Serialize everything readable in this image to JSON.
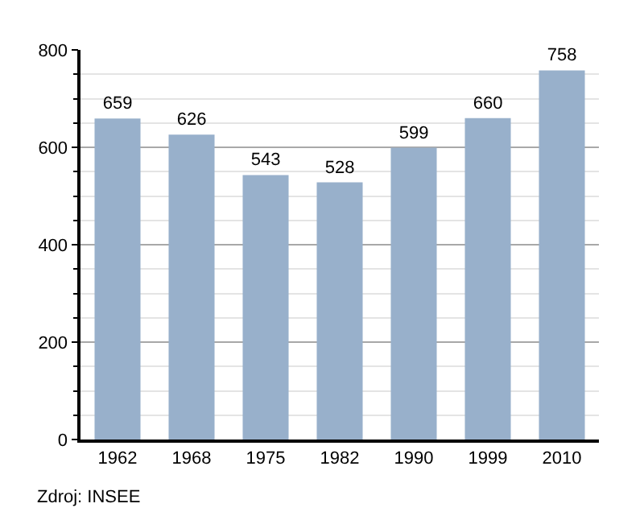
{
  "chart_data": {
    "type": "bar",
    "categories": [
      "1962",
      "1968",
      "1975",
      "1982",
      "1990",
      "1999",
      "2010"
    ],
    "values": [
      659,
      626,
      543,
      528,
      599,
      660,
      758
    ],
    "color": "#98b0cb",
    "data_labels": true,
    "ylim": [
      0,
      800
    ],
    "yticks": [
      0,
      {
        "value": 50,
        "label": null
      },
      {
        "value": 100,
        "label": null
      },
      {
        "value": 150,
        "label": null
      },
      200,
      {
        "value": 250,
        "label": null
      },
      {
        "value": 300,
        "label": null
      },
      {
        "value": 350,
        "label": null
      },
      400,
      {
        "value": 450,
        "label": null
      },
      {
        "value": 500,
        "label": null
      },
      {
        "value": 550,
        "label": null
      },
      600,
      {
        "value": 650,
        "label": null
      },
      {
        "value": 700,
        "label": null
      },
      {
        "value": 750,
        "label": null
      },
      800
    ],
    "grid": "y",
    "legend": false,
    "annotations": [
      "Zdroj: INSEE"
    ]
  }
}
